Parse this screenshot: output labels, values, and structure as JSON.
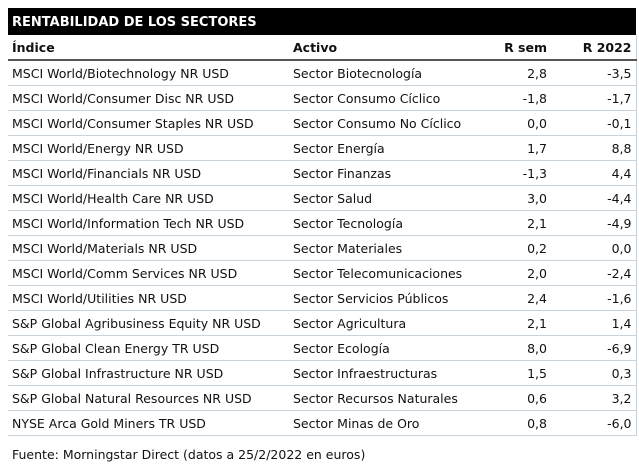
{
  "title": "RENTABILIDAD DE LOS SECTORES",
  "table": {
    "header": [
      "Índice",
      "Activo",
      "R sem",
      "R 2022"
    ],
    "rows": [
      [
        "MSCI World/Biotechnology NR USD",
        "Sector Biotecnología",
        "2,8",
        "-3,5"
      ],
      [
        "MSCI World/Consumer Disc NR USD",
        "Sector Consumo Cíclico",
        "-1,8",
        "-1,7"
      ],
      [
        "MSCI World/Consumer Staples NR USD",
        "Sector Consumo No Cíclico",
        "0,0",
        "-0,1"
      ],
      [
        "MSCI World/Energy NR USD",
        "Sector Energía",
        "1,7",
        "8,8"
      ],
      [
        "MSCI World/Financials NR USD",
        "Sector Finanzas",
        "-1,3",
        "4,4"
      ],
      [
        "MSCI World/Health Care NR USD",
        "Sector Salud",
        "3,0",
        "-4,4"
      ],
      [
        "MSCI World/Information Tech NR USD",
        "Sector Tecnología",
        "2,1",
        "-4,9"
      ],
      [
        "MSCI World/Materials NR USD",
        "Sector Materiales",
        "0,2",
        "0,0"
      ],
      [
        "MSCI World/Comm Services NR USD",
        "Sector Telecomunicaciones",
        "2,0",
        "-2,4"
      ],
      [
        "MSCI World/Utilities NR USD",
        "Sector Servicios Públicos",
        "2,4",
        "-1,6"
      ],
      [
        "S&P Global Agribusiness Equity NR USD",
        "Sector Agricultura",
        "2,1",
        "1,4"
      ],
      [
        "S&P Global Clean Energy TR USD",
        "Sector Ecología",
        "8,0",
        "-6,9"
      ],
      [
        "S&P Global Infrastructure NR USD",
        "Sector Infraestructuras",
        "1,5",
        "0,3"
      ],
      [
        "S&P Global Natural Resources NR USD",
        "Sector Recursos Naturales",
        "0,6",
        "3,2"
      ],
      [
        "NYSE Arca Gold Miners TR USD",
        "Sector Minas de Oro",
        "0,8",
        "-6,0"
      ]
    ]
  },
  "source": "Fuente: Morningstar Direct (datos a 25/2/2022 en euros)"
}
